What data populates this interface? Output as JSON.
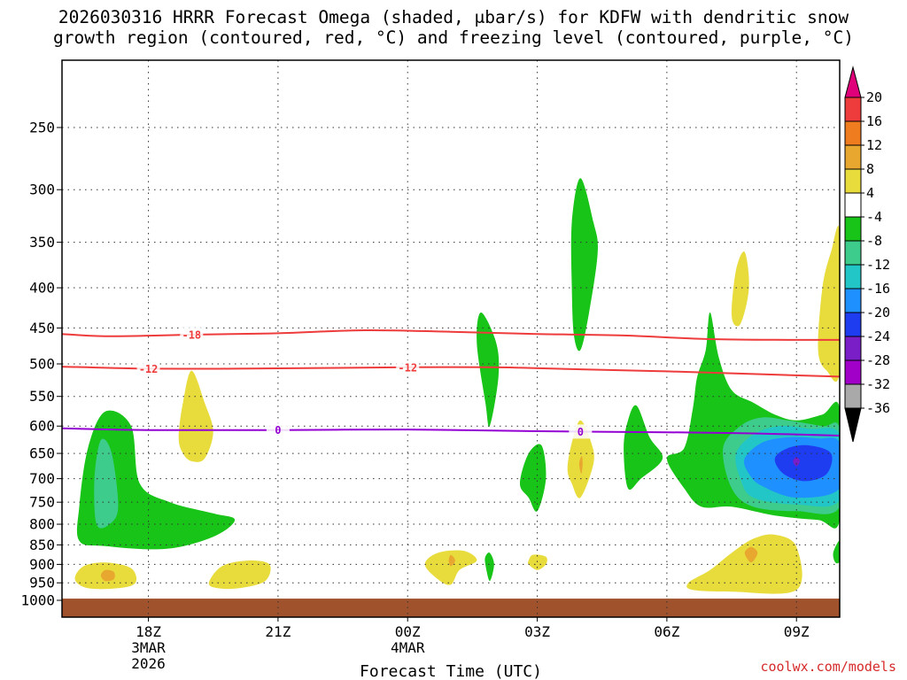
{
  "title": {
    "line1": "2026030316 HRRR Forecast Omega (shaded, μbar/s) for KDFW with dendritic snow",
    "line2": "growth region (contoured, red, °C) and freezing level (contoured, purple, °C)"
  },
  "credit": "coolwx.com/models",
  "chart_data": {
    "type": "time-height cross section",
    "xlabel": "Forecast Time (UTC)",
    "ylabel": "",
    "x_units": "hours since 2026-03-03 16Z",
    "xlim": [
      16,
      34
    ],
    "x_ticks": [
      {
        "hour": 18,
        "lines": [
          "18Z",
          "3MAR",
          "2026"
        ]
      },
      {
        "hour": 21,
        "lines": [
          "21Z"
        ]
      },
      {
        "hour": 24,
        "lines": [
          "00Z",
          "4MAR"
        ]
      },
      {
        "hour": 27,
        "lines": [
          "03Z"
        ]
      },
      {
        "hour": 30,
        "lines": [
          "06Z"
        ]
      },
      {
        "hour": 33,
        "lines": [
          "09Z"
        ]
      }
    ],
    "y_units": "hPa",
    "y_scale": "log",
    "ylim": [
      1000,
      200
    ],
    "y_ticks": [
      250,
      300,
      350,
      400,
      450,
      500,
      550,
      600,
      650,
      700,
      750,
      800,
      850,
      900,
      950,
      1000
    ],
    "grid": true,
    "terrain_color": "#a0522d",
    "shading": {
      "variable": "Omega",
      "units": "μbar/s",
      "colorbar_ticks": [
        "20",
        "16",
        "12",
        "8",
        "4",
        "-4",
        "-8",
        "-12",
        "-16",
        "-20",
        "-24",
        "-28",
        "-32",
        "-36"
      ],
      "bands": [
        {
          "range": ">20",
          "color": "#e0007a"
        },
        {
          "range": "16 to 20",
          "color": "#ee3b3b"
        },
        {
          "range": "12 to 16",
          "color": "#f07c20"
        },
        {
          "range": "8 to 12",
          "color": "#e8a830"
        },
        {
          "range": "4 to 8",
          "color": "#e8dc3c"
        },
        {
          "range": "-4 to 4",
          "color": "#ffffff"
        },
        {
          "range": "-8 to -4",
          "color": "#17c417"
        },
        {
          "range": "-12 to -8",
          "color": "#3dcc8c"
        },
        {
          "range": "-16 to -12",
          "color": "#22c6c6"
        },
        {
          "range": "-20 to -16",
          "color": "#1e90ff"
        },
        {
          "range": "-24 to -20",
          "color": "#1e3cf0"
        },
        {
          "range": "-28 to -24",
          "color": "#7a1ec8"
        },
        {
          "range": "-32 to -28",
          "color": "#a000c8"
        },
        {
          "range": "-36 to -32",
          "color": "#a9a9a9"
        },
        {
          "range": "<-36",
          "color": "#000000"
        }
      ]
    },
    "contours": [
      {
        "name": "-18",
        "kind": "dendritic snow growth (°C)",
        "color": "#ee3b3b",
        "label": "-18",
        "points": [
          [
            16,
            458
          ],
          [
            17,
            461
          ],
          [
            19,
            459
          ],
          [
            21,
            457
          ],
          [
            23,
            453
          ],
          [
            25,
            455
          ],
          [
            27,
            458
          ],
          [
            29,
            460
          ],
          [
            31,
            465
          ],
          [
            33,
            466
          ],
          [
            34,
            466
          ]
        ]
      },
      {
        "name": "-12",
        "kind": "dendritic snow growth (°C)",
        "color": "#ee3b3b",
        "label": "-12",
        "points": [
          [
            16,
            504
          ],
          [
            18,
            507
          ],
          [
            20,
            507
          ],
          [
            22,
            506
          ],
          [
            24,
            505
          ],
          [
            26,
            505
          ],
          [
            28,
            508
          ],
          [
            30,
            511
          ],
          [
            32,
            515
          ],
          [
            34,
            519
          ]
        ]
      },
      {
        "name": "0",
        "kind": "freezing level (°C)",
        "color": "#9400d3",
        "label": "0",
        "points": [
          [
            16,
            604
          ],
          [
            18,
            607
          ],
          [
            21,
            607
          ],
          [
            24,
            606
          ],
          [
            27,
            609
          ],
          [
            30,
            611
          ],
          [
            32,
            613
          ],
          [
            34,
            617
          ]
        ]
      }
    ],
    "omega_regions": [
      {
        "band": "-8 to -4",
        "points": [
          [
            16.4,
            840
          ],
          [
            16.4,
            760
          ],
          [
            16.6,
            640
          ],
          [
            17.0,
            575
          ],
          [
            17.6,
            600
          ],
          [
            17.8,
            710
          ],
          [
            18.5,
            750
          ],
          [
            19.5,
            775
          ],
          [
            20.0,
            790
          ],
          [
            19.5,
            830
          ],
          [
            18.4,
            860
          ],
          [
            17.0,
            853
          ]
        ]
      },
      {
        "band": "-12 to -8",
        "points": [
          [
            16.8,
            800
          ],
          [
            16.75,
            700
          ],
          [
            16.9,
            625
          ],
          [
            17.15,
            650
          ],
          [
            17.3,
            760
          ],
          [
            17.1,
            800
          ]
        ]
      },
      {
        "band": "4 to 8",
        "points": [
          [
            18.7,
            620
          ],
          [
            18.8,
            560
          ],
          [
            19.0,
            510
          ],
          [
            19.3,
            560
          ],
          [
            19.5,
            610
          ],
          [
            19.3,
            660
          ],
          [
            19.0,
            665
          ],
          [
            18.8,
            650
          ]
        ]
      },
      {
        "band": "4 to 8",
        "points": [
          [
            16.3,
            940
          ],
          [
            16.5,
            905
          ],
          [
            17.0,
            895
          ],
          [
            17.6,
            910
          ],
          [
            17.7,
            950
          ],
          [
            17.3,
            965
          ],
          [
            16.6,
            965
          ]
        ]
      },
      {
        "band": "8 to 12",
        "points": [
          [
            16.9,
            930
          ],
          [
            17.0,
            915
          ],
          [
            17.2,
            920
          ],
          [
            17.2,
            940
          ],
          [
            17.0,
            945
          ]
        ]
      },
      {
        "band": "4 to 8",
        "points": [
          [
            19.4,
            950
          ],
          [
            19.7,
            905
          ],
          [
            20.3,
            890
          ],
          [
            20.8,
            900
          ],
          [
            20.7,
            945
          ],
          [
            20.1,
            965
          ],
          [
            19.6,
            965
          ]
        ]
      },
      {
        "band": "4 to 8",
        "points": [
          [
            24.4,
            900
          ],
          [
            24.7,
            870
          ],
          [
            25.3,
            865
          ],
          [
            25.6,
            890
          ],
          [
            25.2,
            915
          ],
          [
            25.0,
            955
          ],
          [
            24.7,
            940
          ]
        ]
      },
      {
        "band": "8 to 12",
        "points": [
          [
            24.95,
            890
          ],
          [
            25.0,
            875
          ],
          [
            25.1,
            890
          ],
          [
            25.0,
            905
          ]
        ]
      },
      {
        "band": "-8 to -4",
        "points": [
          [
            25.8,
            880
          ],
          [
            25.9,
            870
          ],
          [
            26.0,
            900
          ],
          [
            25.9,
            945
          ],
          [
            25.8,
            900
          ]
        ]
      },
      {
        "band": "4 to 8",
        "points": [
          [
            26.8,
            890
          ],
          [
            26.9,
            875
          ],
          [
            27.2,
            880
          ],
          [
            27.2,
            900
          ],
          [
            27.0,
            915
          ],
          [
            26.8,
            900
          ]
        ]
      },
      {
        "band": "-8 to -4",
        "points": [
          [
            25.6,
            470
          ],
          [
            25.7,
            430
          ],
          [
            26.05,
            470
          ],
          [
            26.1,
            520
          ],
          [
            25.9,
            600
          ],
          [
            25.8,
            560
          ]
        ]
      },
      {
        "band": "-8 to -4",
        "points": [
          [
            26.6,
            710
          ],
          [
            26.8,
            650
          ],
          [
            27.1,
            635
          ],
          [
            27.2,
            700
          ],
          [
            27.0,
            770
          ],
          [
            26.8,
            740
          ]
        ]
      },
      {
        "band": "4 to 8",
        "points": [
          [
            27.7,
            680
          ],
          [
            27.8,
            630
          ],
          [
            28.0,
            590
          ],
          [
            28.25,
            630
          ],
          [
            28.3,
            670
          ],
          [
            28.0,
            740
          ],
          [
            27.8,
            710
          ]
        ]
      },
      {
        "band": "8 to 12",
        "points": [
          [
            27.97,
            670
          ],
          [
            28.03,
            655
          ],
          [
            28.05,
            670
          ],
          [
            28.02,
            690
          ]
        ]
      },
      {
        "band": "-8 to -4",
        "points": [
          [
            27.8,
            400
          ],
          [
            27.8,
            330
          ],
          [
            28.0,
            290
          ],
          [
            28.3,
            330
          ],
          [
            28.4,
            360
          ],
          [
            28.2,
            430
          ],
          [
            28.0,
            480
          ],
          [
            27.85,
            460
          ]
        ]
      },
      {
        "band": "-8 to -4",
        "points": [
          [
            29.0,
            640
          ],
          [
            29.1,
            590
          ],
          [
            29.3,
            565
          ],
          [
            29.6,
            620
          ],
          [
            29.9,
            660
          ],
          [
            29.4,
            700
          ],
          [
            29.1,
            720
          ]
        ]
      },
      {
        "band": "4 to 8",
        "points": [
          [
            31.5,
            435
          ],
          [
            31.6,
            380
          ],
          [
            31.8,
            360
          ],
          [
            31.9,
            400
          ],
          [
            31.7,
            445
          ]
        ]
      },
      {
        "band": "-8 to -4",
        "points": [
          [
            30.0,
            660
          ],
          [
            30.4,
            640
          ],
          [
            30.6,
            570
          ],
          [
            30.7,
            520
          ],
          [
            30.9,
            480
          ],
          [
            31.0,
            430
          ],
          [
            31.2,
            490
          ],
          [
            31.5,
            540
          ],
          [
            32.0,
            560
          ],
          [
            32.5,
            580
          ],
          [
            33.0,
            590
          ],
          [
            33.6,
            580
          ],
          [
            34.0,
            570
          ],
          [
            34.0,
            790
          ],
          [
            33.5,
            790
          ],
          [
            32.5,
            780
          ],
          [
            31.5,
            760
          ],
          [
            30.8,
            760
          ],
          [
            30.4,
            720
          ]
        ]
      },
      {
        "band": "-12 to -8",
        "points": [
          [
            31.3,
            640
          ],
          [
            31.7,
            600
          ],
          [
            32.2,
            585
          ],
          [
            32.8,
            590
          ],
          [
            33.6,
            600
          ],
          [
            34.0,
            605
          ],
          [
            34.0,
            760
          ],
          [
            33.0,
            770
          ],
          [
            32.0,
            760
          ],
          [
            31.5,
            720
          ]
        ]
      },
      {
        "band": "-16 to -12",
        "points": [
          [
            31.6,
            650
          ],
          [
            32.0,
            615
          ],
          [
            32.6,
            600
          ],
          [
            33.3,
            605
          ],
          [
            34.0,
            615
          ],
          [
            34.0,
            745
          ],
          [
            33.0,
            755
          ],
          [
            32.0,
            740
          ],
          [
            31.7,
            700
          ]
        ]
      },
      {
        "band": "-20 to -16",
        "points": [
          [
            31.8,
            660
          ],
          [
            32.2,
            630
          ],
          [
            32.8,
            620
          ],
          [
            33.5,
            622
          ],
          [
            34.0,
            630
          ],
          [
            34.0,
            720
          ],
          [
            33.0,
            740
          ],
          [
            32.2,
            715
          ],
          [
            31.9,
            690
          ]
        ]
      },
      {
        "band": "-24 to -20",
        "points": [
          [
            32.5,
            660
          ],
          [
            32.8,
            640
          ],
          [
            33.3,
            635
          ],
          [
            33.8,
            650
          ],
          [
            33.7,
            690
          ],
          [
            33.2,
            705
          ],
          [
            32.7,
            690
          ]
        ]
      },
      {
        "band": "-28 to -24",
        "points": [
          [
            32.92,
            665
          ],
          [
            33.0,
            657
          ],
          [
            33.08,
            665
          ],
          [
            33.0,
            675
          ]
        ]
      },
      {
        "band": "4 to 8",
        "points": [
          [
            30.5,
            950
          ],
          [
            31.0,
            915
          ],
          [
            31.5,
            870
          ],
          [
            32.0,
            835
          ],
          [
            32.5,
            825
          ],
          [
            33.0,
            855
          ],
          [
            33.0,
            970
          ],
          [
            31.5,
            975
          ],
          [
            30.6,
            970
          ]
        ]
      },
      {
        "band": "8 to 12",
        "points": [
          [
            31.8,
            870
          ],
          [
            31.95,
            855
          ],
          [
            32.1,
            870
          ],
          [
            31.95,
            895
          ]
        ]
      },
      {
        "band": "4 to 8",
        "points": [
          [
            33.5,
            480
          ],
          [
            33.6,
            400
          ],
          [
            33.8,
            360
          ],
          [
            34.0,
            340
          ],
          [
            34.0,
            510
          ],
          [
            33.7,
            510
          ]
        ]
      },
      {
        "band": "-8 to -4",
        "points": [
          [
            33.85,
            870
          ],
          [
            34.0,
            840
          ],
          [
            34.0,
            890
          ],
          [
            33.9,
            895
          ]
        ]
      }
    ]
  }
}
